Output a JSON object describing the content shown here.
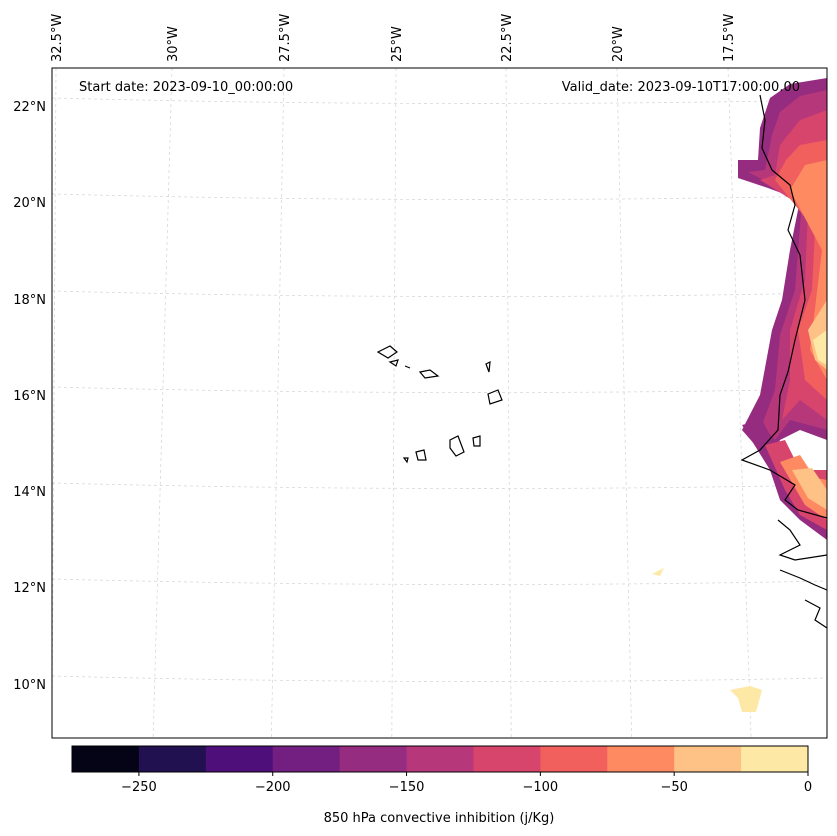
{
  "map": {
    "start_label": "Start date: 2023-09-10_00:00:00",
    "valid_label": "Valid_date: 2023-09-10T17:00:00.00",
    "lon_labels": [
      "32.5°W",
      "30°W",
      "27.5°W",
      "25°W",
      "22.5°W",
      "20°W",
      "17.5°W"
    ],
    "lat_labels": [
      "22°N",
      "20°N",
      "18°N",
      "16°N",
      "14°N",
      "12°N",
      "10°N"
    ],
    "gridlines": true,
    "coastlines": true
  },
  "colorbar": {
    "label": "850 hPa convective inhibition (j/Kg)",
    "levels": [
      -275,
      -250,
      -225,
      -200,
      -175,
      -150,
      -125,
      -100,
      -75,
      -50,
      -25,
      0
    ],
    "tick_labels": [
      "−250",
      "−200",
      "−150",
      "−100",
      "−50",
      "0"
    ],
    "colors": [
      "#050417",
      "#221150",
      "#4f0f7b",
      "#721f81",
      "#952c80",
      "#b6377a",
      "#d8456c",
      "#f1605d",
      "#fe8a62",
      "#fec287",
      "#fde9a5"
    ]
  },
  "field_colors": {
    "very_low": "#952c80",
    "low": "#b6377a",
    "mid": "#d8456c",
    "midhigh": "#f1605d",
    "high": "#fe8a62",
    "higher": "#fec287",
    "near_zero": "#fde9a5"
  }
}
